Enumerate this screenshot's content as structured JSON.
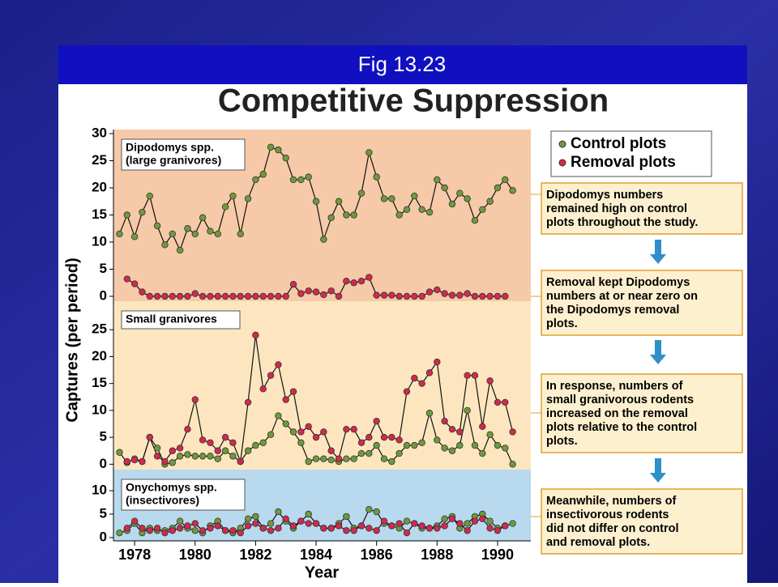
{
  "header": {
    "title": "Fig 13.23"
  },
  "chart_data": {
    "type": "line",
    "title": "Competitive Suppression",
    "xlabel": "Year",
    "ylabel": "Captures (per period)",
    "xlim": [
      1977.3,
      1991.1
    ],
    "xticks": [
      1978,
      1980,
      1982,
      1984,
      1986,
      1988,
      1990
    ],
    "x": [
      1977.5,
      1977.75,
      1978,
      1978.25,
      1978.5,
      1978.75,
      1979,
      1979.25,
      1979.5,
      1979.75,
      1980,
      1980.25,
      1980.5,
      1980.75,
      1981,
      1981.25,
      1981.5,
      1981.75,
      1982,
      1982.25,
      1982.5,
      1982.75,
      1983,
      1983.25,
      1983.5,
      1983.75,
      1984,
      1984.25,
      1984.5,
      1984.75,
      1985,
      1985.25,
      1985.5,
      1985.75,
      1986,
      1986.25,
      1986.5,
      1986.75,
      1987,
      1987.25,
      1987.5,
      1987.75,
      1988,
      1988.25,
      1988.5,
      1988.75,
      1989,
      1989.25,
      1989.5,
      1989.75,
      1990,
      1990.25,
      1990.5
    ],
    "panels": [
      {
        "label_lines": [
          "Dipodomys spp.",
          "(large granivores)"
        ],
        "background": "#f6c9a8",
        "ylim": [
          -0.9,
          30.75
        ],
        "yticks": [
          0,
          5,
          10,
          15,
          20,
          25,
          30
        ],
        "series": [
          {
            "name": "Control plots",
            "color": "#6f9a3c",
            "values": [
              11.5,
              15,
              11,
              15.5,
              18.5,
              13,
              9.5,
              11.5,
              8.5,
              12.5,
              11.5,
              14.5,
              12,
              11.5,
              16.5,
              18.5,
              11.5,
              18,
              21.5,
              22.5,
              27.5,
              27,
              25.5,
              21.5,
              21.5,
              22,
              17.5,
              10.5,
              14.5,
              17.5,
              15,
              15,
              19,
              26.5,
              22,
              18,
              18,
              15,
              16,
              18.5,
              16,
              15.5,
              21.5,
              20,
              17,
              19,
              18,
              14,
              16,
              17.5,
              20,
              21.5,
              19.5
            ]
          },
          {
            "name": "Removal plots",
            "color": "#d2294c",
            "values": [
              null,
              3.2,
              2.3,
              0.8,
              0,
              0,
              0,
              0,
              0,
              0,
              0.5,
              0,
              0,
              0,
              0,
              0,
              0,
              0,
              0,
              0,
              0,
              0,
              0,
              2.2,
              0.5,
              1,
              0.8,
              0.3,
              1,
              0,
              2.8,
              2.5,
              2.8,
              3.5,
              0.2,
              0.2,
              0.2,
              0,
              0,
              0,
              0,
              0.8,
              1.2,
              0.5,
              0.2,
              0.2,
              0.5,
              0,
              0,
              0,
              0,
              0,
              null
            ]
          }
        ]
      },
      {
        "label_lines": [
          "Small granivores"
        ],
        "background": "#fde6bf",
        "ylim": [
          -1,
          30.3
        ],
        "yticks": [
          0,
          5,
          10,
          15,
          20,
          25
        ],
        "series": [
          {
            "name": "Control plots",
            "color": "#6f9a3c",
            "values": [
              2.2,
              0.3,
              1,
              0.5,
              5,
              3,
              0,
              0.3,
              1.5,
              1.8,
              1.5,
              1.5,
              1.5,
              1,
              2.5,
              1.5,
              0.5,
              2.5,
              3.5,
              4,
              5.5,
              9,
              7.5,
              6,
              4,
              0.5,
              1,
              1,
              0.8,
              0.5,
              1,
              1,
              2,
              2,
              3.5,
              1,
              0.5,
              2,
              3.5,
              3.5,
              4,
              9.5,
              4.5,
              3,
              2.5,
              3.5,
              10,
              3.5,
              2,
              5.5,
              3.5,
              3,
              0
            ]
          },
          {
            "name": "Removal plots",
            "color": "#d2294c",
            "values": [
              null,
              0.5,
              0.8,
              0.5,
              5,
              1.5,
              0.5,
              2.5,
              3,
              6.5,
              12,
              4.5,
              4,
              2.5,
              5,
              4,
              0.5,
              11.5,
              24,
              14,
              16.5,
              18.5,
              12,
              13.5,
              6,
              7,
              5,
              6,
              2.5,
              1,
              6.5,
              6.5,
              4,
              5,
              8,
              5,
              5,
              4.5,
              13.5,
              16,
              15,
              17,
              19,
              8,
              6.5,
              6,
              16.5,
              16.5,
              7,
              15.5,
              11.5,
              11.5,
              6
            ]
          }
        ]
      },
      {
        "label_lines": [
          "Onychomys spp.",
          "(insectivores)"
        ],
        "background": "#b9d9ef",
        "ylim": [
          -0.7,
          14.5
        ],
        "yticks": [
          0,
          5,
          10
        ],
        "series": [
          {
            "name": "Control plots",
            "color": "#6f9a3c",
            "values": [
              1,
              1.5,
              3,
              1,
              2,
              1.5,
              1.5,
              2,
              3.5,
              2,
              1.5,
              1,
              2.5,
              3.5,
              1.5,
              1,
              2,
              4,
              4.5,
              2,
              3,
              5.5,
              3.5,
              2,
              3.5,
              5,
              3,
              2,
              2,
              3,
              4.5,
              2,
              2.5,
              6,
              5.5,
              3,
              2.5,
              2,
              3.5,
              3,
              2,
              2,
              2.5,
              4,
              4.5,
              2,
              3,
              4.5,
              5,
              3.5,
              2,
              2.5,
              3
            ]
          },
          {
            "name": "Removal plots",
            "color": "#d2294c",
            "values": [
              null,
              2,
              3.5,
              2,
              1.5,
              2,
              1,
              1.5,
              2,
              2.5,
              3,
              1.5,
              2,
              2.5,
              1.5,
              1.5,
              1,
              2.5,
              3,
              2,
              1.5,
              2,
              4,
              2.5,
              3.5,
              3,
              3,
              2,
              2,
              2.5,
              1.5,
              1.5,
              2.5,
              2,
              1.5,
              3.5,
              2.5,
              3,
              1,
              3,
              2.5,
              2,
              2,
              2.5,
              4,
              3,
              1.5,
              3.5,
              4,
              2,
              1.5,
              2.5,
              null
            ]
          }
        ]
      }
    ],
    "notes": [
      {
        "lines": [
          "Dipodomys numbers",
          "remained high on control",
          "plots throughout the study."
        ]
      },
      {
        "lines": [
          "Removal kept Dipodomys",
          "numbers at or near zero on",
          "the Dipodomys removal",
          "plots."
        ]
      },
      {
        "lines": [
          "In response, numbers of",
          "small granivorous rodents",
          "increased on the removal",
          "plots relative to the control",
          "plots."
        ]
      },
      {
        "lines": [
          "Meanwhile, numbers of",
          "insectivorous rodents",
          "did not differ on control",
          "and removal plots."
        ]
      }
    ]
  }
}
